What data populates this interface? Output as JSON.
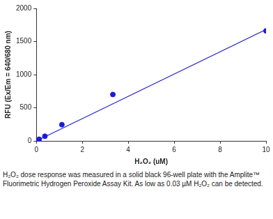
{
  "chart_data": {
    "type": "scatter",
    "x_label": "H₂O₂ (uM)",
    "y_label": "RFU (Ex/Em = 640/680 nm)",
    "caption": "H₂O₂ dose response was measured in a solid black 96-well plate with the Amplite™ Fluorimetric Hydrogen Peroxide Assay Kit. As low as 0.03 µM H₂O₂ can be detected.",
    "series": [
      {
        "type": "scatter",
        "marker": "circle",
        "color": "#1a1adf",
        "x": [
          0,
          0.12,
          0.37,
          1.11,
          3.33,
          10
        ],
        "values": [
          5,
          25,
          70,
          245,
          700,
          1660
        ]
      },
      {
        "type": "line",
        "line_style": "solid",
        "color": "#2b2bc8",
        "x": [
          0,
          10
        ],
        "values": [
          0,
          1680
        ]
      }
    ],
    "xlim": [
      0,
      10
    ],
    "xticks": [
      0,
      2,
      4,
      6,
      8,
      10
    ],
    "ylim": [
      0,
      2000
    ],
    "yticks": [
      0,
      500,
      1000,
      1500,
      2000
    ],
    "grid": false
  }
}
